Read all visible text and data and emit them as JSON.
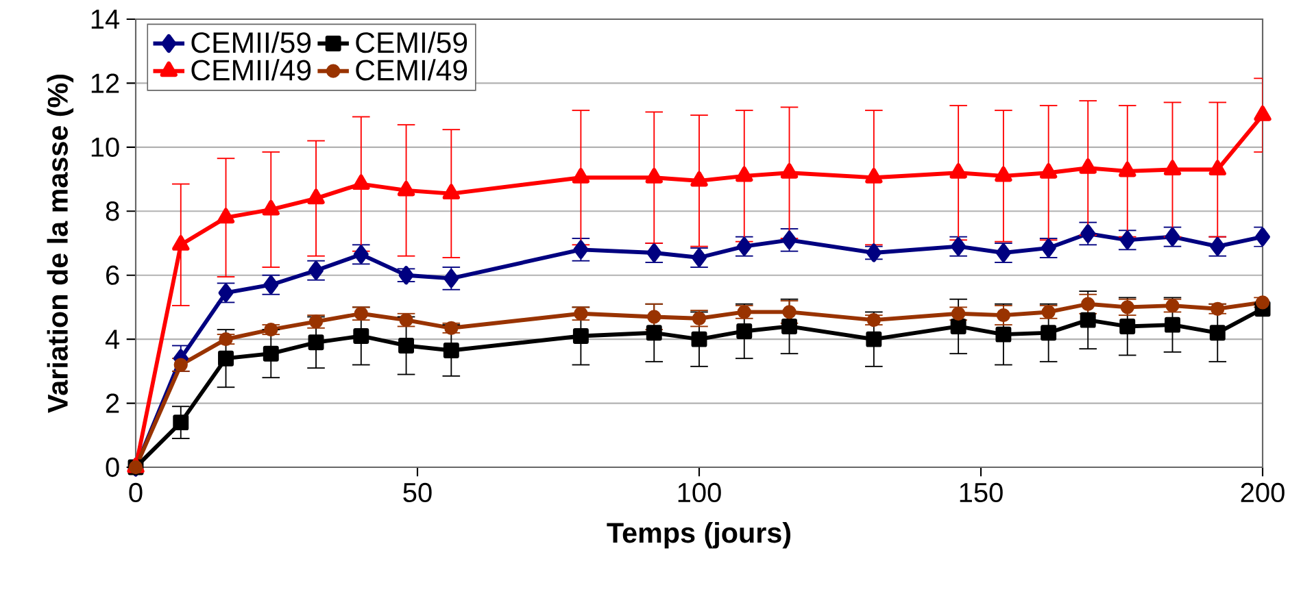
{
  "chart_data": {
    "type": "line",
    "xlabel": "Temps (jours)",
    "ylabel": "Variation de la masse (%)",
    "x": [
      0,
      8,
      16,
      24,
      32,
      40,
      48,
      56,
      79,
      92,
      100,
      108,
      116,
      131,
      146,
      154,
      162,
      169,
      176,
      184,
      192,
      200
    ],
    "xlim": [
      0,
      200
    ],
    "xticks": [
      0,
      50,
      100,
      150,
      200
    ],
    "ylim": [
      0,
      14
    ],
    "yticks": [
      0,
      2,
      4,
      6,
      8,
      10,
      12,
      14
    ],
    "grid": "y",
    "legend": "top left",
    "series": [
      {
        "name": "CEMII/59",
        "color": "#000080",
        "marker": "diamond",
        "values": [
          0,
          3.4,
          5.45,
          5.7,
          6.15,
          6.65,
          6.0,
          5.9,
          6.8,
          6.7,
          6.55,
          6.9,
          7.1,
          6.7,
          6.9,
          6.7,
          6.85,
          7.3,
          7.1,
          7.2,
          6.9,
          7.2
        ],
        "errors": [
          null,
          0.4,
          0.3,
          0.3,
          0.3,
          0.3,
          0.2,
          0.35,
          0.35,
          0.3,
          0.3,
          0.3,
          0.35,
          0.2,
          0.3,
          0.3,
          0.3,
          0.35,
          0.3,
          0.3,
          0.3,
          0.3
        ]
      },
      {
        "name": "CEMI/59",
        "color": "#000000",
        "marker": "square",
        "values": [
          0,
          1.4,
          3.4,
          3.55,
          3.9,
          4.1,
          3.8,
          3.65,
          4.1,
          4.2,
          4.0,
          4.25,
          4.4,
          4.0,
          4.4,
          4.15,
          4.2,
          4.6,
          4.4,
          4.45,
          4.2,
          4.95
        ],
        "errors": [
          null,
          0.5,
          0.9,
          0.75,
          0.8,
          0.9,
          0.9,
          0.8,
          0.9,
          0.9,
          0.85,
          0.85,
          0.85,
          0.85,
          0.85,
          0.95,
          0.9,
          0.9,
          0.9,
          0.85,
          0.9,
          0.15
        ]
      },
      {
        "name": "CEMII/49",
        "color": "#ff0000",
        "marker": "triangle",
        "values": [
          0,
          6.95,
          7.8,
          8.05,
          8.4,
          8.85,
          8.65,
          8.55,
          9.05,
          9.05,
          8.95,
          9.1,
          9.2,
          9.05,
          9.2,
          9.1,
          9.2,
          9.35,
          9.25,
          9.3,
          9.3,
          11.0
        ],
        "errors": [
          null,
          1.9,
          1.85,
          1.8,
          1.8,
          2.1,
          2.05,
          2.0,
          2.1,
          2.05,
          2.05,
          2.05,
          2.05,
          2.1,
          2.1,
          2.05,
          2.1,
          2.1,
          2.05,
          2.1,
          2.1,
          1.15
        ]
      },
      {
        "name": "CEMI/49",
        "color": "#993300",
        "marker": "circle",
        "values": [
          0,
          3.2,
          4.0,
          4.3,
          4.55,
          4.8,
          4.6,
          4.35,
          4.8,
          4.7,
          4.65,
          4.85,
          4.85,
          4.6,
          4.8,
          4.75,
          4.85,
          5.1,
          5.0,
          5.05,
          4.95,
          5.15
        ],
        "errors": [
          null,
          0.2,
          0.15,
          0.15,
          0.2,
          0.2,
          0.2,
          0.15,
          0.2,
          0.4,
          0.25,
          0.2,
          0.35,
          0.15,
          0.2,
          0.3,
          0.2,
          0.3,
          0.25,
          0.2,
          0.15,
          0.15
        ]
      }
    ]
  }
}
